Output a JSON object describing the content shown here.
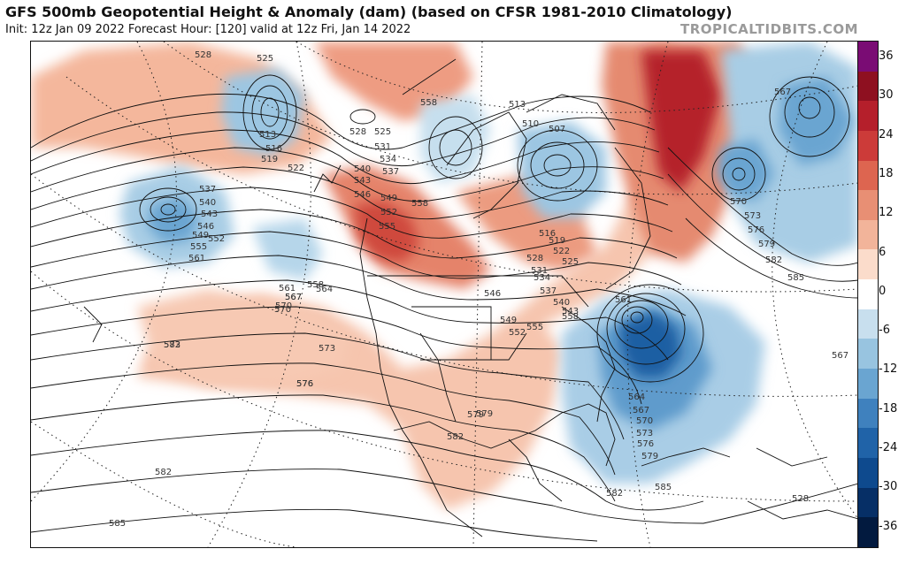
{
  "header": {
    "title": "GFS 500mb Geopotential Height & Anomaly (dam) (based on CFSR 1981-2010 Climatology)",
    "subtitle": "Init: 12z Jan 09 2022   Forecast Hour: [120]   valid at 12z Fri, Jan 14 2022",
    "credit": "TROPICALTIDBITS.COM"
  },
  "colorbar": {
    "labels": [
      "36",
      "30",
      "24",
      "18",
      "12",
      "6",
      "0",
      "-6",
      "-12",
      "-18",
      "-24",
      "-30",
      "-36"
    ],
    "colors": [
      "#7a0c74",
      "#8e1020",
      "#b51f2b",
      "#cc3b39",
      "#dd6550",
      "#e88f74",
      "#f2b49a",
      "#fbdccb",
      "#ffffff",
      "#c8dfee",
      "#98c4e0",
      "#6aa5d1",
      "#3f81be",
      "#2063a8",
      "#0e4a8e",
      "#062f66",
      "#021a3f"
    ]
  },
  "map": {
    "anomalies": [
      {
        "name": "pacific-northwest-ridge",
        "sign": "positive",
        "max": "24"
      },
      {
        "name": "greenland-ridge",
        "sign": "positive",
        "max": "30"
      },
      {
        "name": "gulf-of-alaska-high",
        "sign": "positive",
        "max": "12"
      },
      {
        "name": "east-coast-trough",
        "sign": "negative",
        "min": "-30"
      },
      {
        "name": "north-pacific-low",
        "sign": "negative",
        "min": "-18"
      },
      {
        "name": "north-atlantic-low",
        "sign": "negative",
        "min": "-18"
      },
      {
        "name": "hudson-bay-low",
        "sign": "negative",
        "min": "-18"
      }
    ],
    "contour_labels": [
      "528",
      "525",
      "513",
      "516",
      "519",
      "522",
      "528",
      "525",
      "531",
      "534",
      "537",
      "540",
      "543",
      "546",
      "549",
      "552",
      "555",
      "558",
      "561",
      "564",
      "567",
      "570",
      "573",
      "576",
      "579",
      "582",
      "585",
      "537",
      "540",
      "543",
      "546",
      "549",
      "552",
      "555",
      "561",
      "558",
      "567",
      "570",
      "582",
      "576",
      "573",
      "579",
      "582",
      "507",
      "510",
      "513",
      "516",
      "519",
      "522",
      "525",
      "528",
      "531",
      "534",
      "537",
      "540",
      "543",
      "546",
      "549",
      "552",
      "555",
      "558",
      "561",
      "564",
      "567",
      "570",
      "573",
      "576",
      "579",
      "582",
      "585",
      "567",
      "567",
      "570",
      "573",
      "576",
      "579",
      "582",
      "585",
      "528",
      "558"
    ]
  }
}
